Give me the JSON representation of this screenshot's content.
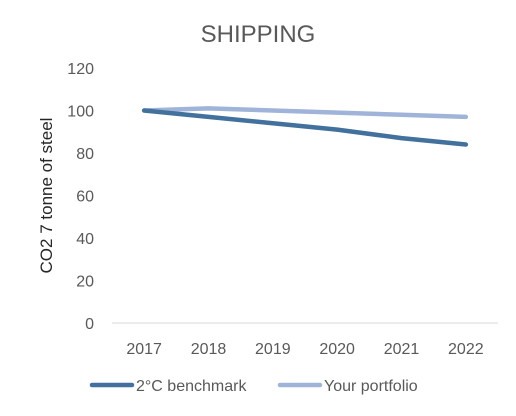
{
  "chart_data": {
    "type": "line",
    "title": "SHIPPING",
    "ylabel": "CO2 7 tonne of steel",
    "xlabel": "",
    "categories": [
      "2017",
      "2018",
      "2019",
      "2020",
      "2021",
      "2022"
    ],
    "ylim": [
      0,
      120
    ],
    "yticks": [
      0,
      20,
      40,
      60,
      80,
      100,
      120
    ],
    "grid": false,
    "legend_position": "bottom",
    "series": [
      {
        "name": "2°C benchmark",
        "color": "#41719c",
        "values": [
          100,
          97,
          94,
          91,
          87,
          84
        ]
      },
      {
        "name": "Your portfolio",
        "color": "#9fb4d8",
        "values": [
          100,
          101,
          100,
          99,
          98,
          97
        ]
      }
    ]
  }
}
